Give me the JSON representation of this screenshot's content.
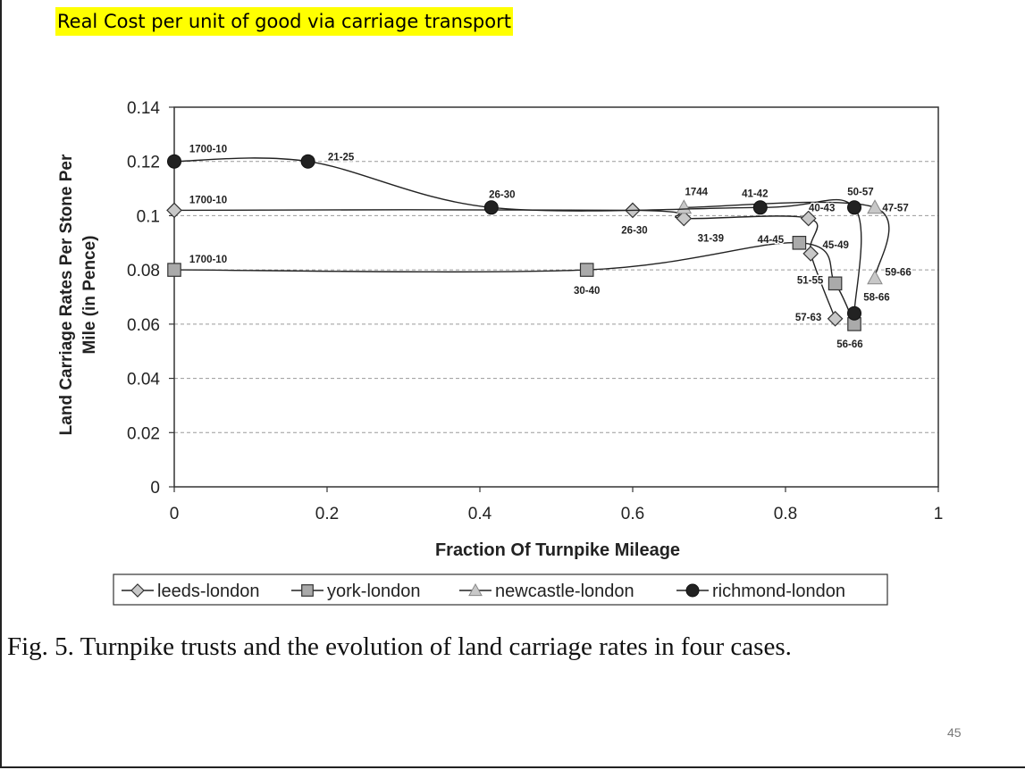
{
  "slide": {
    "title": "Real Cost per unit of good via carriage transport",
    "caption": "Fig. 5.  Turnpike trusts and the evolution of land carriage rates in four cases.",
    "page_number": "45"
  },
  "chart_data": {
    "type": "line",
    "title": "",
    "xlabel": "Fraction Of Turnpike Mileage",
    "ylabel": "Land Carriage Rates Per Stone Per Mile (in Pence)",
    "ylabel_lines": [
      "Land Carriage Rates Per Stone Per",
      "Mile (in Pence)"
    ],
    "xlim": [
      0,
      1
    ],
    "ylim": [
      0,
      0.14
    ],
    "x_ticks": [
      0,
      0.2,
      0.4,
      0.6,
      0.8,
      1
    ],
    "x_tick_labels": [
      "0",
      "0.2",
      "0.4",
      "0.6",
      "0.8",
      "1"
    ],
    "y_ticks": [
      0,
      0.02,
      0.04,
      0.06,
      0.08,
      0.1,
      0.12,
      0.14
    ],
    "y_tick_labels": [
      "0",
      "0.02",
      "0.04",
      "0.06",
      "0.08",
      "0.1",
      "0.12",
      "0.14"
    ],
    "grid": "horizontal-dashed",
    "legend_position": "bottom",
    "series": [
      {
        "name": "leeds-london",
        "marker": "diamond",
        "color": "#c8c8c8",
        "points": [
          {
            "x": 0.0,
            "y": 0.102,
            "label": "1700-10"
          },
          {
            "x": 0.6,
            "y": 0.102,
            "label": "26-30"
          },
          {
            "x": 0.667,
            "y": 0.099,
            "label": "31-39"
          },
          {
            "x": 0.83,
            "y": 0.099,
            "label": "40-43"
          },
          {
            "x": 0.833,
            "y": 0.086,
            "label": "45-49"
          },
          {
            "x": 0.865,
            "y": 0.062,
            "label": "57-63"
          }
        ]
      },
      {
        "name": "york-london",
        "marker": "square",
        "color": "#aaaaaa",
        "points": [
          {
            "x": 0.0,
            "y": 0.08,
            "label": "1700-10"
          },
          {
            "x": 0.54,
            "y": 0.08,
            "label": "30-40"
          },
          {
            "x": 0.818,
            "y": 0.09,
            "label": "44-45"
          },
          {
            "x": 0.865,
            "y": 0.075,
            "label": "51-55"
          },
          {
            "x": 0.89,
            "y": 0.06,
            "label": "56-66"
          }
        ]
      },
      {
        "name": "newcastle-london",
        "marker": "triangle",
        "color": "#c8c8c8",
        "points": [
          {
            "x": 0.667,
            "y": 0.103,
            "label": "1744"
          },
          {
            "x": 0.917,
            "y": 0.103,
            "label": "47-57"
          },
          {
            "x": 0.917,
            "y": 0.077,
            "label": "59-66"
          }
        ]
      },
      {
        "name": "richmond-london",
        "marker": "circle",
        "color": "#222222",
        "points": [
          {
            "x": 0.0,
            "y": 0.12,
            "label": "1700-10"
          },
          {
            "x": 0.175,
            "y": 0.12,
            "label": "21-25"
          },
          {
            "x": 0.415,
            "y": 0.103,
            "label": "26-30"
          },
          {
            "x": 0.767,
            "y": 0.103,
            "label": "41-42"
          },
          {
            "x": 0.89,
            "y": 0.103,
            "label": "50-57"
          },
          {
            "x": 0.89,
            "y": 0.064,
            "label": "58-66"
          }
        ]
      }
    ]
  }
}
